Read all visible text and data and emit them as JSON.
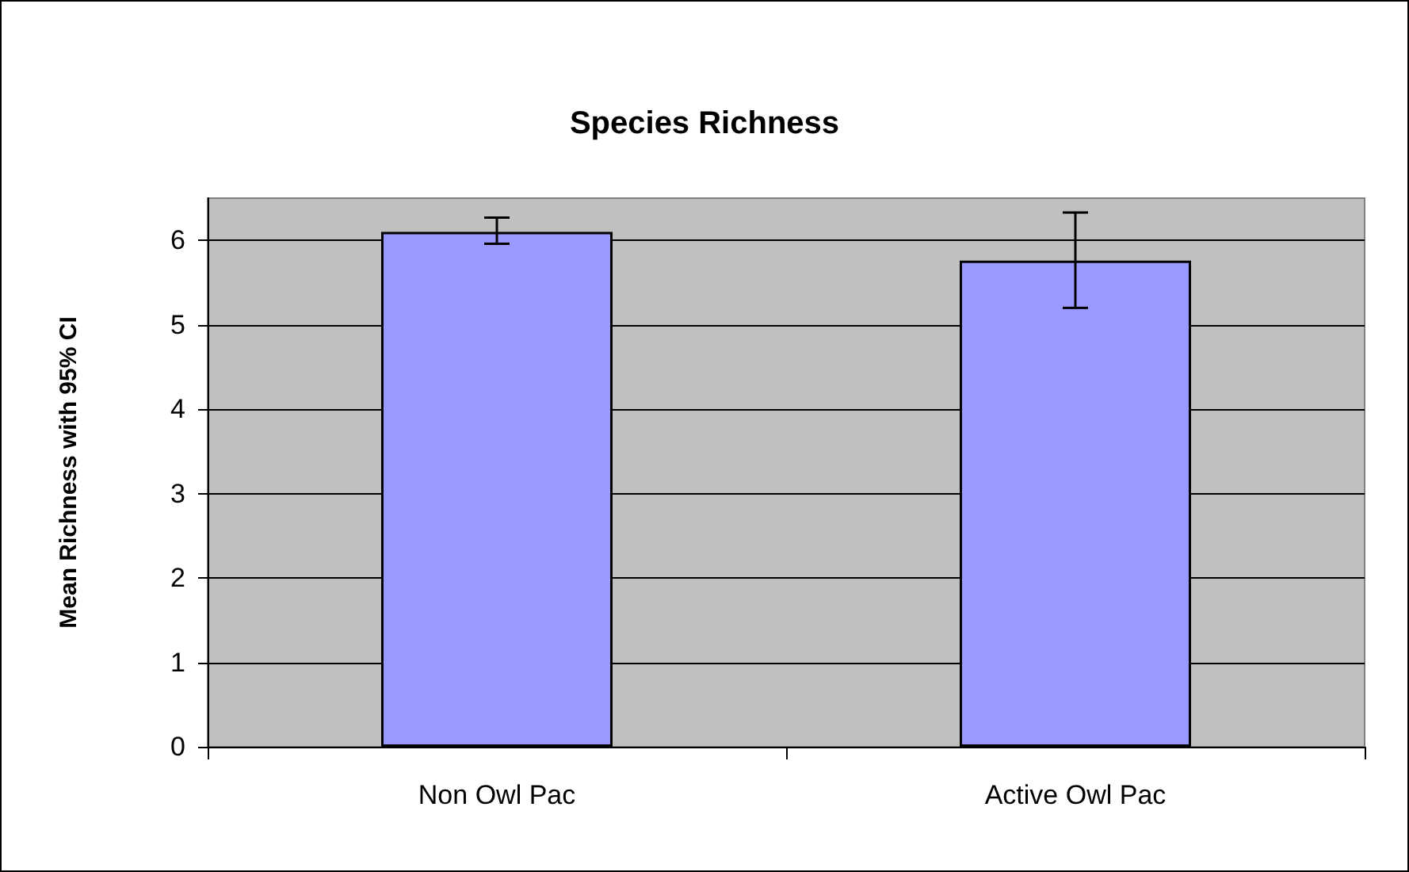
{
  "chart_data": {
    "type": "bar",
    "title": "Species Richness",
    "ylabel": "Mean Richness with 95% CI",
    "categories": [
      "Non Owl Pac",
      "Active Owl Pac"
    ],
    "values": [
      6.1,
      5.76
    ],
    "errors": [
      [
        5.96,
        6.27
      ],
      [
        5.2,
        6.33
      ]
    ],
    "color": "#9999ff",
    "ylim": [
      0,
      6.5
    ],
    "yticks": [
      0,
      1,
      2,
      3,
      4,
      5,
      6
    ],
    "grid": "y"
  }
}
